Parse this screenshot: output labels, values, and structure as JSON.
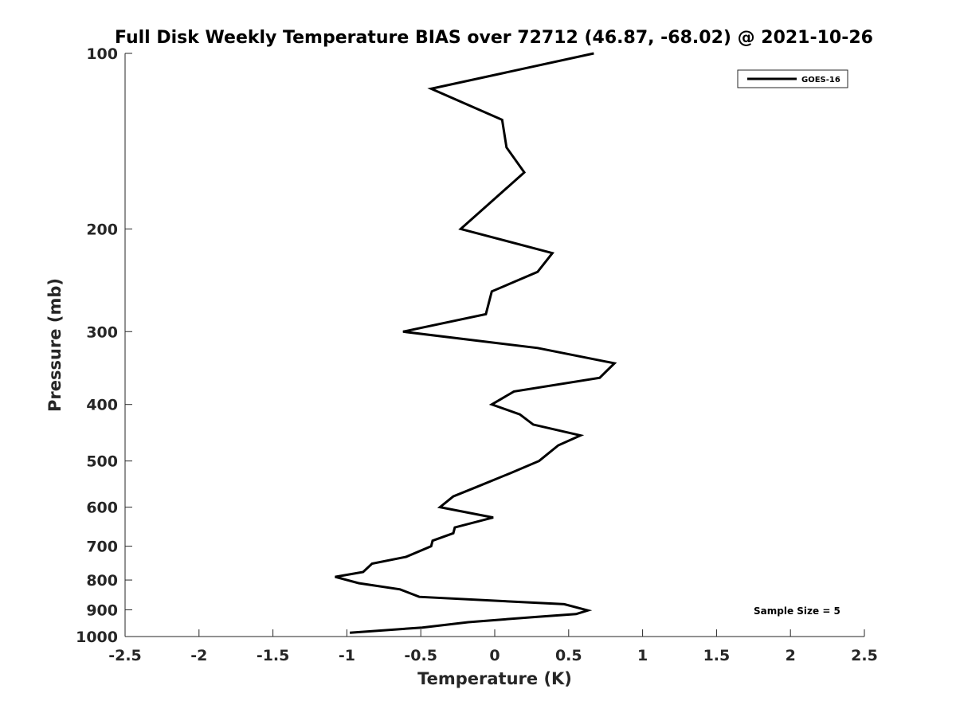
{
  "chart_data": {
    "type": "line",
    "title": "Full Disk Weekly Temperature BIAS over 72712 (46.87, -68.02) @ 2021-10-26",
    "xlabel": "Temperature (K)",
    "ylabel": "Pressure (mb)",
    "xlim": [
      -2.5,
      2.5
    ],
    "ylim": [
      1000,
      100
    ],
    "y_scale": "log",
    "y_reversed": true,
    "xticks": [
      "-2.5",
      "-2",
      "-1.5",
      "-1",
      "-0.5",
      "0",
      "0.5",
      "1",
      "1.5",
      "2",
      "2.5"
    ],
    "xtick_values": [
      -2.5,
      -2,
      -1.5,
      -1,
      -0.5,
      0,
      0.5,
      1,
      1.5,
      2,
      2.5
    ],
    "yticks": [
      "100",
      "200",
      "300",
      "400",
      "500",
      "600",
      "700",
      "800",
      "900",
      "1000"
    ],
    "ytick_values": [
      100,
      200,
      300,
      400,
      500,
      600,
      700,
      800,
      900,
      1000
    ],
    "grid": false,
    "legend_position": "top-right",
    "line_color": "#000000",
    "series": [
      {
        "name": "GOES-16",
        "x": [
          0.67,
          -0.43,
          0.05,
          0.08,
          0.2,
          -0.23,
          0.39,
          0.29,
          -0.02,
          -0.06,
          -0.62,
          0.29,
          0.81,
          0.71,
          0.13,
          -0.02,
          0.17,
          0.26,
          0.58,
          0.43,
          0.3,
          0.11,
          -0.13,
          -0.28,
          -0.37,
          -0.01,
          -0.27,
          -0.28,
          -0.42,
          -0.43,
          -0.6,
          -0.83,
          -0.89,
          -1.08,
          -0.92,
          -0.64,
          -0.51,
          0.47,
          0.63,
          0.55,
          0.29,
          -0.18,
          -0.49,
          -0.98
        ],
        "y": [
          100,
          115,
          130,
          145,
          160,
          200,
          220,
          237,
          256,
          280,
          300,
          320,
          340,
          360,
          380,
          400,
          416,
          433,
          452,
          470,
          500,
          524,
          555,
          575,
          600,
          625,
          650,
          665,
          685,
          700,
          730,
          750,
          775,
          790,
          810,
          830,
          855,
          880,
          902,
          915,
          925,
          945,
          965,
          985
        ]
      }
    ],
    "annotation": "Sample Size = 5"
  }
}
